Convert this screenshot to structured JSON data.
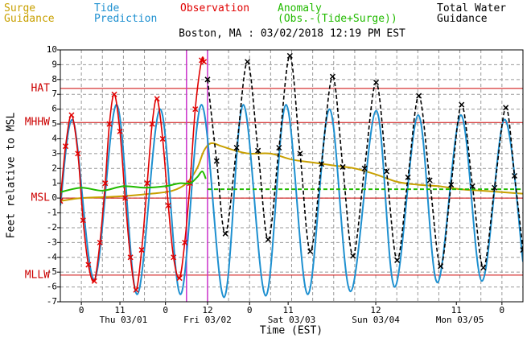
{
  "chart_data": {
    "type": "line",
    "title": "Boston, MA : 03/02/2018 12:19 PM EST",
    "ylabel": "Feet relative to MSL",
    "xlabel": "Time (EST)",
    "xlim": [
      -6,
      126
    ],
    "ylim": [
      -7,
      10
    ],
    "yticks": [
      -7,
      -6,
      -5,
      -4,
      -3,
      -2,
      -1,
      0,
      1,
      2,
      3,
      4,
      5,
      6,
      7,
      8,
      9,
      10
    ],
    "xticks": [
      0,
      11,
      {
        "value": 24,
        "label": "0"
      },
      {
        "value": 36,
        "label": "12"
      },
      {
        "value": 48,
        "label": "0"
      },
      {
        "value": 59,
        "label": "11"
      },
      {
        "value": 84,
        "label": "12"
      },
      {
        "value": 107,
        "label": "11"
      },
      {
        "value": 120,
        "label": "0"
      }
    ],
    "xgrid": [
      -6,
      0,
      6,
      12,
      18,
      24,
      30,
      36,
      42,
      48,
      54,
      60,
      66,
      72,
      78,
      84,
      90,
      96,
      102,
      108,
      114,
      120,
      126
    ],
    "day_labels": [
      {
        "value": 12,
        "label": "Thu 03/01"
      },
      {
        "value": 36,
        "label": "Fri 03/02"
      },
      {
        "value": 60,
        "label": "Sat 03/03"
      },
      {
        "value": 84,
        "label": "Sun 03/04"
      },
      {
        "value": 108,
        "label": "Mon 03/05"
      }
    ],
    "grid": true,
    "vlines": [
      30,
      36
    ],
    "vline_color": "#cc33cc",
    "ref_color": "#cc0000",
    "ref_lines": [
      {
        "label": "HAT",
        "value": 7.4
      },
      {
        "label": "MHHW",
        "value": 5.1
      },
      {
        "label": "MSL",
        "value": 0
      },
      {
        "label": "MLLW",
        "value": -5.2
      }
    ],
    "series": [
      {
        "name": "Surge\nGuidance",
        "color": "#c8a000",
        "x": [
          -6,
          0,
          10,
          20,
          26,
          30,
          33,
          35,
          37,
          40,
          44,
          48,
          54,
          60,
          66,
          72,
          78,
          84,
          90,
          96,
          102,
          108,
          114,
          120,
          126
        ],
        "values": [
          -0.2,
          0,
          0.1,
          0.3,
          0.5,
          1.0,
          2.0,
          3.2,
          3.7,
          3.5,
          3.2,
          3.0,
          3.0,
          2.6,
          2.4,
          2.2,
          2.0,
          1.6,
          1.1,
          0.9,
          0.8,
          0.6,
          0.5,
          0.4,
          0.3
        ]
      },
      {
        "name": "Tide\nPrediction",
        "color": "#1e90d0",
        "x": [
          -6,
          -2.3,
          3.7,
          10.1,
          15.9,
          22.5,
          28.3,
          34.3,
          40.7,
          46.2,
          52.6,
          58.4,
          64.6,
          70.8,
          76.8,
          84.1,
          89.4,
          96.1,
          101.6,
          108.3,
          114.3,
          120.7,
          126
        ],
        "values": [
          -0.5,
          5.2,
          -5.5,
          6.3,
          -6.5,
          6.0,
          -6.5,
          6.3,
          -6.7,
          6.3,
          -6.6,
          6.3,
          -6.5,
          6.0,
          -6.3,
          5.9,
          -6.0,
          5.6,
          -5.7,
          5.6,
          -5.6,
          5.3,
          -4.3
        ]
      },
      {
        "name": "Observation",
        "color": "#e00000",
        "marker": "x",
        "x": [
          -6,
          -4.5,
          -2.8,
          -1,
          0.5,
          2,
          3.7,
          5.3,
          6.8,
          8,
          9.4,
          11,
          12.5,
          14,
          15.6,
          17.2,
          18.8,
          20.2,
          21.6,
          23.2,
          24.8,
          26.3,
          28,
          29.5,
          31,
          32.5,
          34.3,
          35
        ],
        "values": [
          -0.2,
          3.5,
          5.6,
          3,
          -1.5,
          -4.5,
          -5.6,
          -3,
          1,
          5,
          7.0,
          4.5,
          0,
          -4,
          -6.2,
          -3.5,
          1,
          5,
          6.7,
          4,
          -0.5,
          -4,
          -5.4,
          -3,
          1,
          6,
          9.3,
          9.2
        ]
      },
      {
        "name": "Anomaly\n(Obs.-(Tide+Surge))",
        "color": "#22bb00",
        "dashed_after": 36,
        "x": [
          -6,
          0,
          6,
          12,
          18,
          24,
          28,
          31,
          33,
          34.5,
          35.5,
          36,
          60,
          90,
          126
        ],
        "values": [
          0.4,
          0.7,
          0.5,
          0.8,
          0.7,
          0.8,
          1.0,
          1.0,
          1.4,
          1.8,
          1.3,
          0.6,
          0.6,
          0.6,
          0.6
        ]
      },
      {
        "name": "Total Water\nGuidance",
        "color": "#000000",
        "marker": "x",
        "dash": true,
        "x": [
          36,
          38.6,
          41.1,
          44.3,
          47.4,
          50.4,
          53.3,
          56.4,
          59.5,
          62.4,
          65.3,
          68.5,
          71.7,
          74.6,
          77.5,
          80.8,
          84.1,
          87.1,
          90.1,
          93.2,
          96.3,
          99.4,
          102.5,
          105.5,
          108.5,
          111.6,
          114.7,
          117.9,
          121.1,
          123.6,
          126
        ],
        "values": [
          8.0,
          2.5,
          -2.4,
          3.4,
          9.2,
          3.2,
          -2.8,
          3.4,
          9.6,
          3.0,
          -3.6,
          2.3,
          8.2,
          2.1,
          -3.9,
          2.0,
          7.8,
          1.8,
          -4.2,
          1.4,
          6.9,
          1.2,
          -4.6,
          0.9,
          6.3,
          0.8,
          -4.7,
          0.7,
          6.1,
          1.5,
          -3.5
        ]
      }
    ]
  }
}
